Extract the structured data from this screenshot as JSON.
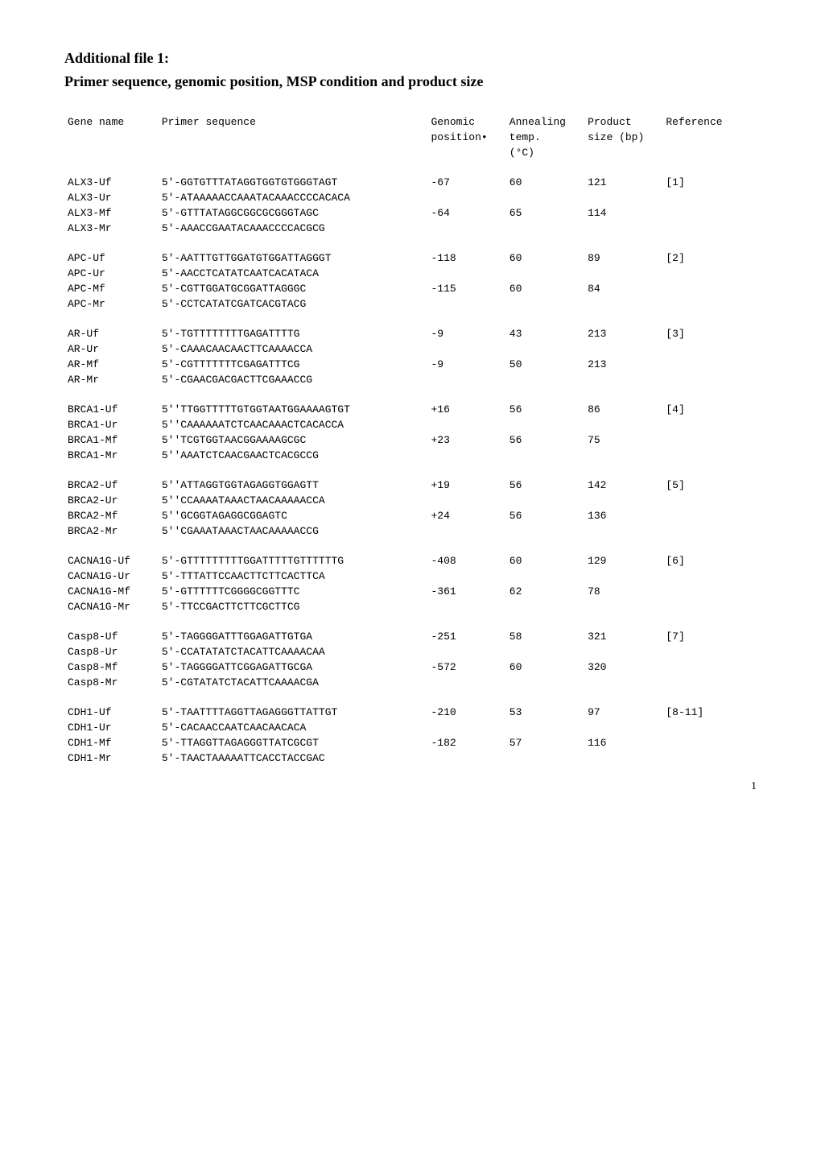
{
  "title": "Additional file 1:",
  "subtitle": "Primer sequence, genomic position, MSP condition and product size",
  "header": {
    "gene": "Gene name",
    "primer": "Primer sequence",
    "pos_l1": "Genomic",
    "pos_l2": "position•",
    "temp_l1": "Annealing",
    "temp_l2": "temp.",
    "temp_l3": "(°C)",
    "size_l1": "Product",
    "size_l2": "size (bp)",
    "ref": "Reference"
  },
  "groups": [
    {
      "rows": [
        {
          "gene": "ALX3-Uf",
          "primer": "5'-GGTGTTTATAGGTGGTGTGGGTAGT",
          "pos": "-67",
          "temp": "60",
          "size": "121",
          "ref": "[1]"
        },
        {
          "gene": "ALX3-Ur",
          "primer": "5'-ATAAAAACCAAATACAAACCCCACACA",
          "pos": "",
          "temp": "",
          "size": "",
          "ref": ""
        },
        {
          "gene": "ALX3-Mf",
          "primer": "5'-GTTTATAGGCGGCGCGGGTAGC",
          "pos": "-64",
          "temp": "65",
          "size": "114",
          "ref": ""
        },
        {
          "gene": "ALX3-Mr",
          "primer": "5'-AAACCGAATACAAACCCCACGCG",
          "pos": "",
          "temp": "",
          "size": "",
          "ref": ""
        }
      ]
    },
    {
      "rows": [
        {
          "gene": "APC-Uf",
          "primer": "5'-AATTTGTTGGATGTGGATTAGGGT",
          "pos": "-118",
          "temp": "60",
          "size": "89",
          "ref": "[2]"
        },
        {
          "gene": "APC-Ur",
          "primer": "5'-AACCTCATATCAATCACATACA",
          "pos": "",
          "temp": "",
          "size": "",
          "ref": ""
        },
        {
          "gene": "APC-Mf",
          "primer": "5'-CGTTGGATGCGGATTAGGGC",
          "pos": "-115",
          "temp": "60",
          "size": "84",
          "ref": ""
        },
        {
          "gene": "APC-Mr",
          "primer": "5'-CCTCATATCGATCACGTACG",
          "pos": "",
          "temp": "",
          "size": "",
          "ref": ""
        }
      ]
    },
    {
      "rows": [
        {
          "gene": "AR-Uf",
          "primer": "5'-TGTTTTTTTTGAGATTTTG",
          "pos": "-9",
          "temp": "43",
          "size": "213",
          "ref": "[3]"
        },
        {
          "gene": "AR-Ur",
          "primer": "5'-CAAACAACAACTTCAAAACCA",
          "pos": "",
          "temp": "",
          "size": "",
          "ref": ""
        },
        {
          "gene": "AR-Mf",
          "primer": "5'-CGTTTTTTTCGAGATTTCG",
          "pos": "-9",
          "temp": "50",
          "size": "213",
          "ref": ""
        },
        {
          "gene": "AR-Mr",
          "primer": "5'-CGAACGACGACTTCGAAACCG",
          "pos": "",
          "temp": "",
          "size": "",
          "ref": ""
        }
      ]
    },
    {
      "rows": [
        {
          "gene": "BRCA1-Uf",
          "primer": "5''TTGGTTTTTGTGGTAATGGAAAAGTGT",
          "pos": "+16",
          "temp": "56",
          "size": "86",
          "ref": "[4]"
        },
        {
          "gene": "BRCA1-Ur",
          "primer": "5''CAAAAAATCTCAACAAACTCACACCA",
          "pos": "",
          "temp": "",
          "size": "",
          "ref": ""
        },
        {
          "gene": "BRCA1-Mf",
          "primer": "5''TCGTGGTAACGGAAAAGCGC",
          "pos": "+23",
          "temp": "56",
          "size": "75",
          "ref": ""
        },
        {
          "gene": "BRCA1-Mr",
          "primer": "5''AAATCTCAACGAACTCACGCCG",
          "pos": "",
          "temp": "",
          "size": "",
          "ref": ""
        }
      ]
    },
    {
      "rows": [
        {
          "gene": "BRCA2-Uf",
          "primer": "5''ATTAGGTGGTAGAGGTGGAGTT",
          "pos": "+19",
          "temp": "56",
          "size": "142",
          "ref": "[5]"
        },
        {
          "gene": "BRCA2-Ur",
          "primer": "5''CCAAAATAAACTAACAAAAACCA",
          "pos": "",
          "temp": "",
          "size": "",
          "ref": ""
        },
        {
          "gene": "BRCA2-Mf",
          "primer": "5''GCGGTAGAGGCGGAGTC",
          "pos": "+24",
          "temp": "56",
          "size": "136",
          "ref": ""
        },
        {
          "gene": "BRCA2-Mr",
          "primer": "5''CGAAATAAACTAACAAAAACCG",
          "pos": "",
          "temp": "",
          "size": "",
          "ref": ""
        }
      ]
    },
    {
      "rows": [
        {
          "gene": "CACNA1G-Uf",
          "primer": "5'-GTTTTTTTTTGGATTTTTGTTTTTTG",
          "pos": "-408",
          "temp": "60",
          "size": "129",
          "ref": "[6]"
        },
        {
          "gene": "CACNA1G-Ur",
          "primer": "5'-TTTATTCCAACTTCTTCACTTCA",
          "pos": "",
          "temp": "",
          "size": "",
          "ref": ""
        },
        {
          "gene": "CACNA1G-Mf",
          "primer": "5'-GTTTTTTCGGGGCGGTTTC",
          "pos": "-361",
          "temp": "62",
          "size": "78",
          "ref": ""
        },
        {
          "gene": "CACNA1G-Mr",
          "primer": "5'-TTCCGACTTCTTCGCTTCG",
          "pos": "",
          "temp": "",
          "size": "",
          "ref": ""
        }
      ]
    },
    {
      "rows": [
        {
          "gene": "Casp8-Uf",
          "primer": "5'-TAGGGGATTTGGAGATTGTGA",
          "pos": "-251",
          "temp": "58",
          "size": "321",
          "ref": "[7]"
        },
        {
          "gene": "Casp8-Ur",
          "primer": "5'-CCATATATCTACATTCAAAACAA",
          "pos": "",
          "temp": "",
          "size": "",
          "ref": ""
        },
        {
          "gene": "Casp8-Mf",
          "primer": "5'-TAGGGGATTCGGAGATTGCGA",
          "pos": "-572",
          "temp": "60",
          "size": "320",
          "ref": ""
        },
        {
          "gene": "Casp8-Mr",
          "primer": "5'-CGTATATCTACATTCAAAACGA",
          "pos": "",
          "temp": "",
          "size": "",
          "ref": ""
        }
      ]
    },
    {
      "rows": [
        {
          "gene": "CDH1-Uf",
          "primer": "5'-TAATTTTAGGTTAGAGGGTTATTGT",
          "pos": "-210",
          "temp": "53",
          "size": "97",
          "ref": "[8-11]"
        },
        {
          "gene": "CDH1-Ur",
          "primer": "5'-CACAACCAATCAACAACACA",
          "pos": "",
          "temp": "",
          "size": "",
          "ref": ""
        },
        {
          "gene": "CDH1-Mf",
          "primer": "5'-TTAGGTTAGAGGGTTATCGCGT",
          "pos": "-182",
          "temp": "57",
          "size": "116",
          "ref": ""
        },
        {
          "gene": "CDH1-Mr",
          "primer": "5'-TAACTAAAAATTCACCTACCGAC",
          "pos": "",
          "temp": "",
          "size": "",
          "ref": ""
        }
      ]
    }
  ],
  "pageNumber": "1"
}
